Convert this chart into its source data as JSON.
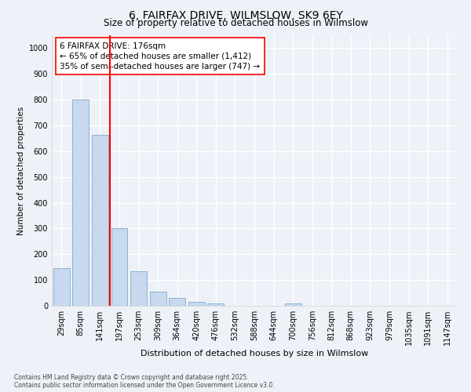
{
  "title": "6, FAIRFAX DRIVE, WILMSLOW, SK9 6EY",
  "subtitle": "Size of property relative to detached houses in Wilmslow",
  "xlabel": "Distribution of detached houses by size in Wilmslow",
  "ylabel": "Number of detached properties",
  "categories": [
    "29sqm",
    "85sqm",
    "141sqm",
    "197sqm",
    "253sqm",
    "309sqm",
    "364sqm",
    "420sqm",
    "476sqm",
    "532sqm",
    "588sqm",
    "644sqm",
    "700sqm",
    "756sqm",
    "812sqm",
    "868sqm",
    "923sqm",
    "979sqm",
    "1035sqm",
    "1091sqm",
    "1147sqm"
  ],
  "values": [
    145,
    800,
    665,
    300,
    135,
    55,
    30,
    15,
    10,
    0,
    0,
    0,
    10,
    0,
    0,
    0,
    0,
    0,
    0,
    0,
    0
  ],
  "bar_color": "#c8d8ee",
  "bar_edgecolor": "#7aabcf",
  "vline_color": "red",
  "annotation_text": "6 FAIRFAX DRIVE: 176sqm\n← 65% of detached houses are smaller (1,412)\n35% of semi-detached houses are larger (747) →",
  "annotation_box_edgecolor": "red",
  "annotation_box_facecolor": "white",
  "ylim": [
    0,
    1050
  ],
  "yticks": [
    0,
    100,
    200,
    300,
    400,
    500,
    600,
    700,
    800,
    900,
    1000
  ],
  "bg_color": "#eef2f8",
  "grid_color": "white",
  "footnote": "Contains HM Land Registry data © Crown copyright and database right 2025.\nContains public sector information licensed under the Open Government Licence v3.0.",
  "title_fontsize": 10,
  "subtitle_fontsize": 8.5,
  "xlabel_fontsize": 8,
  "ylabel_fontsize": 7.5,
  "tick_fontsize": 7,
  "annotation_fontsize": 7.5,
  "footnote_fontsize": 5.5
}
